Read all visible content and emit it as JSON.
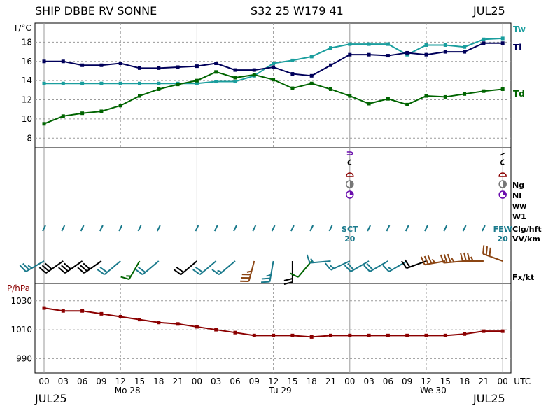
{
  "header": {
    "station": "SHIP DBBE RV SONNE",
    "position": "S32 25 W179 41",
    "month_left": "JUL25"
  },
  "footer": {
    "month_left": "JUL25",
    "month_right": "JUL25"
  },
  "colors": {
    "tw": "#1a9e9e",
    "tl": "#00005a",
    "td": "#006400",
    "pressure": "#8b0000",
    "grid": "#9a9a9a",
    "clouds_purple": "#6a0dad",
    "clouds_red": "#8b0000",
    "gray": "#777777",
    "barb_teal": "#1a7a8c",
    "barb_black": "#000000",
    "barb_green": "#006400",
    "barb_brown": "#8b4513"
  },
  "chart_data": [
    {
      "type": "line",
      "title": "",
      "ylabel": "T/°C",
      "ylim": [
        7,
        20
      ],
      "yticks": [
        8,
        10,
        12,
        14,
        16,
        18
      ],
      "x": [
        "00",
        "03",
        "06",
        "09",
        "12",
        "15",
        "18",
        "21",
        "00",
        "03",
        "06",
        "09",
        "12",
        "15",
        "18",
        "21",
        "00",
        "03",
        "06",
        "09",
        "12",
        "15",
        "18",
        "21",
        "00"
      ],
      "series": [
        {
          "name": "Tw",
          "color_key": "tw",
          "values": [
            13.7,
            13.7,
            13.7,
            13.7,
            13.7,
            13.7,
            13.7,
            13.7,
            13.7,
            13.9,
            13.9,
            14.5,
            15.8,
            16.1,
            16.5,
            17.4,
            17.8,
            17.8,
            17.8,
            16.7,
            17.7,
            17.7,
            17.5,
            18.3,
            18.4
          ]
        },
        {
          "name": "Tl",
          "color_key": "tl",
          "values": [
            16.0,
            16.0,
            15.6,
            15.6,
            15.8,
            15.3,
            15.3,
            15.4,
            15.5,
            15.8,
            15.1,
            15.1,
            15.4,
            14.7,
            14.5,
            15.6,
            16.7,
            16.7,
            16.6,
            16.9,
            16.7,
            17.0,
            17.0,
            17.9,
            17.9
          ]
        },
        {
          "name": "Td",
          "color_key": "td",
          "values": [
            9.5,
            10.3,
            10.6,
            10.8,
            11.4,
            12.4,
            13.1,
            13.6,
            14.0,
            14.9,
            14.3,
            14.6,
            14.1,
            13.2,
            13.7,
            13.1,
            12.4,
            11.6,
            12.1,
            11.5,
            12.4,
            12.3,
            12.6,
            12.9,
            13.1
          ]
        }
      ]
    },
    {
      "type": "line",
      "title": "",
      "ylabel": "P/hPa",
      "ylim": [
        980,
        1042
      ],
      "yticks": [
        990,
        1010,
        1030
      ],
      "x": [
        "00",
        "03",
        "06",
        "09",
        "12",
        "15",
        "18",
        "21",
        "00",
        "03",
        "06",
        "09",
        "12",
        "15",
        "18",
        "21",
        "00",
        "03",
        "06",
        "09",
        "12",
        "15",
        "18",
        "21",
        "00"
      ],
      "series": [
        {
          "name": "P",
          "color_key": "pressure",
          "values": [
            1025,
            1023,
            1023,
            1021,
            1019,
            1017,
            1015,
            1014,
            1012,
            1010,
            1008,
            1006,
            1006,
            1006,
            1005,
            1006,
            1006,
            1006,
            1006,
            1006,
            1006,
            1006,
            1007,
            1009,
            1009
          ]
        }
      ]
    }
  ],
  "obs_panel": {
    "row_labels": [
      "Ng",
      "Nl",
      "ww",
      "W1",
      "Clg/hft",
      "VV/km",
      "Fx/kt"
    ],
    "cloud_cells": [
      {
        "time_index": 16,
        "cloud": "SCT",
        "visibility": "20"
      },
      {
        "time_index": 24,
        "cloud": "FEW",
        "visibility": "20"
      }
    ],
    "winds": [
      {
        "speed_kt": 25,
        "from_deg": 240,
        "color_key": "barb_teal"
      },
      {
        "speed_kt": 30,
        "from_deg": 235,
        "color_key": "barb_black"
      },
      {
        "speed_kt": 30,
        "from_deg": 235,
        "color_key": "barb_black"
      },
      {
        "speed_kt": 30,
        "from_deg": 235,
        "color_key": "barb_black"
      },
      {
        "speed_kt": 20,
        "from_deg": 230,
        "color_key": "barb_teal"
      },
      {
        "speed_kt": 15,
        "from_deg": 210,
        "color_key": "barb_green"
      },
      {
        "speed_kt": 20,
        "from_deg": 230,
        "color_key": "barb_teal"
      },
      null,
      {
        "speed_kt": 20,
        "from_deg": 230,
        "color_key": "barb_black"
      },
      {
        "speed_kt": 20,
        "from_deg": 230,
        "color_key": "barb_teal"
      },
      {
        "speed_kt": 15,
        "from_deg": 230,
        "color_key": "barb_teal"
      },
      {
        "speed_kt": 35,
        "from_deg": 195,
        "color_key": "barb_brown"
      },
      {
        "speed_kt": 25,
        "from_deg": 190,
        "color_key": "barb_teal"
      },
      {
        "speed_kt": 20,
        "from_deg": 180,
        "color_key": "barb_black"
      },
      {
        "speed_kt": 10,
        "from_deg": 220,
        "color_key": "barb_green"
      },
      {
        "speed_kt": 15,
        "from_deg": 265,
        "color_key": "barb_teal"
      },
      {
        "speed_kt": 15,
        "from_deg": 245,
        "color_key": "barb_teal"
      },
      {
        "speed_kt": 20,
        "from_deg": 240,
        "color_key": "barb_teal"
      },
      {
        "speed_kt": 20,
        "from_deg": 240,
        "color_key": "barb_teal"
      },
      {
        "speed_kt": 15,
        "from_deg": 240,
        "color_key": "barb_teal"
      },
      {
        "speed_kt": 20,
        "from_deg": 250,
        "color_key": "barb_black"
      },
      {
        "speed_kt": 35,
        "from_deg": 260,
        "color_key": "barb_brown"
      },
      {
        "speed_kt": 35,
        "from_deg": 265,
        "color_key": "barb_brown"
      },
      {
        "speed_kt": 35,
        "from_deg": 270,
        "color_key": "barb_brown"
      },
      {
        "speed_kt": 30,
        "from_deg": 290,
        "color_key": "barb_brown"
      }
    ]
  },
  "time_axis": {
    "hours": [
      "00",
      "03",
      "06",
      "09",
      "12",
      "15",
      "18",
      "21",
      "00",
      "03",
      "06",
      "09",
      "12",
      "15",
      "18",
      "21",
      "00",
      "03",
      "06",
      "09",
      "12",
      "15",
      "18",
      "21",
      "00"
    ],
    "unit": "UTC",
    "days": [
      {
        "label": "Mo 28",
        "time_index": 4
      },
      {
        "label": "Tu 29",
        "time_index": 12
      },
      {
        "label": "We 30",
        "time_index": 20
      }
    ]
  }
}
